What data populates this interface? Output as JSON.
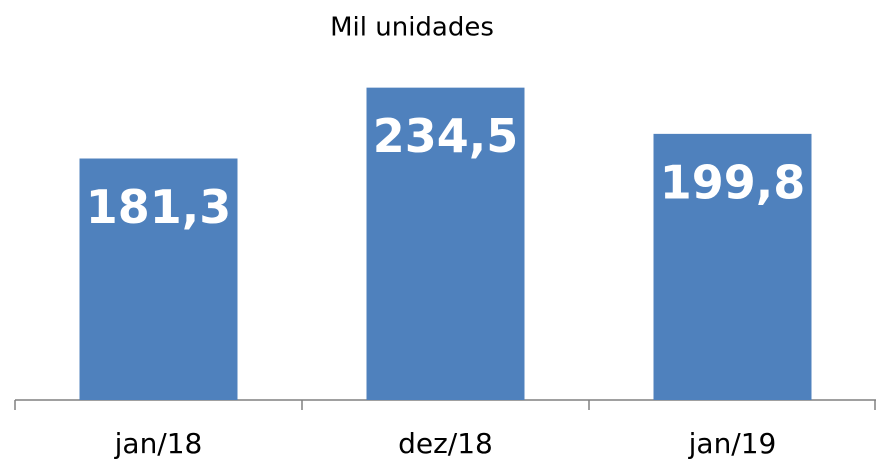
{
  "chart_data": {
    "type": "bar",
    "title": "Mil unidades",
    "categories": [
      "jan/18",
      "dez/18",
      "jan/19"
    ],
    "values": [
      181.3,
      234.5,
      199.8
    ],
    "value_labels": [
      "181,3",
      "234,5",
      "199,8"
    ],
    "color": "#4f81bd",
    "ylim": [
      0,
      250
    ]
  }
}
